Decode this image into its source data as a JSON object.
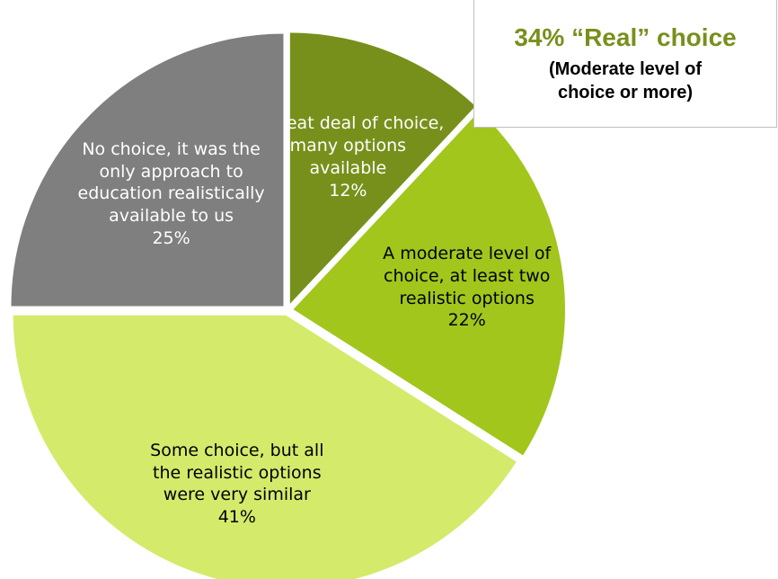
{
  "chart_data": {
    "type": "pie",
    "categories": [
      "A great deal of choice, many options available",
      "A moderate level of choice, at least two realistic options",
      "Some choice, but all the realistic options were very similar",
      "No choice, it was the only approach to education realistically available to us"
    ],
    "values": [
      12,
      22,
      41,
      25
    ],
    "value_labels": [
      "12%",
      "22%",
      "41%",
      "25%"
    ],
    "colors": [
      "#77901b",
      "#a2c61c",
      "#d4ea6b",
      "#7f7f7f"
    ],
    "label_colors": [
      "#ffffff",
      "#000000",
      "#000000",
      "#ffffff"
    ],
    "annotation": {
      "title": "34% “Real” choice",
      "text": "(Moderate level of choice or more)",
      "color": "#77901b"
    }
  }
}
